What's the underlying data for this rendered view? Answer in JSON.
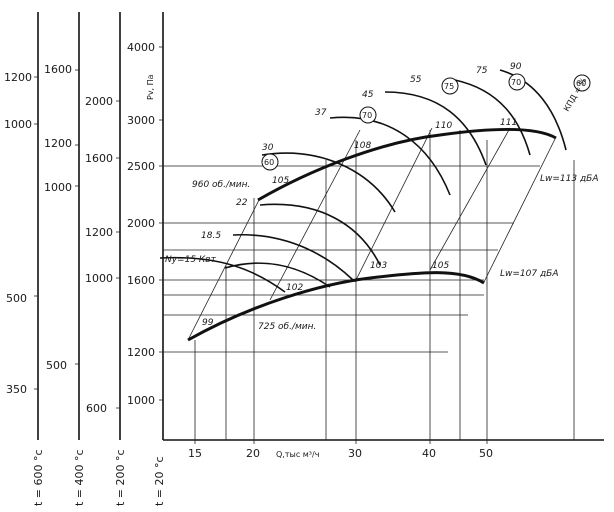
{
  "chart_data": {
    "type": "line",
    "x_axis": {
      "label": "Q,тыс м³/ч",
      "ticks": [
        "15",
        "20",
        "30",
        "40",
        "50"
      ]
    },
    "y_axis": {
      "label": "Pv, Па",
      "ticks": [
        "1000",
        "1200",
        "1600",
        "2000",
        "2500",
        "3000",
        "4000"
      ]
    },
    "temperature_scales": [
      {
        "label": "t = 600 °c",
        "ticks": [
          "350",
          "500",
          "1000",
          "1200"
        ]
      },
      {
        "label": "t = 400 °c",
        "ticks": [
          "500",
          "1000",
          "1200",
          "1600"
        ]
      },
      {
        "label": "t = 200 °c",
        "ticks": [
          "600",
          "1000",
          "1200",
          "1600",
          "2000"
        ]
      },
      {
        "label": "t = 20 °c",
        "ticks": []
      }
    ],
    "speed_curves": [
      {
        "name": "960 об./мин."
      },
      {
        "name": "725 об./мин."
      }
    ],
    "power_curves": [
      {
        "name": "Ny=15 Квт"
      },
      {
        "name": "18.5"
      },
      {
        "name": "22"
      },
      {
        "name": "30"
      },
      {
        "name": "37"
      },
      {
        "name": "45"
      },
      {
        "name": "55"
      },
      {
        "name": "75"
      },
      {
        "name": "90"
      }
    ],
    "efficiency_labels": [
      "60",
      "70",
      "75",
      "70",
      "60"
    ],
    "efficiency_axis_label": "КПД = %",
    "noise_labels": [
      "99",
      "102",
      "103",
      "105",
      "105",
      "108",
      "110",
      "111"
    ],
    "sound_power": [
      "Lw=113 дБА",
      "Lw=107 дБА"
    ]
  }
}
